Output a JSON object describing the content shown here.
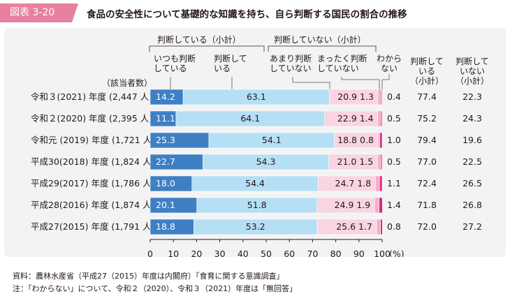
{
  "figure_label": "図表 3-20",
  "figure_title": "食品の安全性について基礎的な知識を持ち、自ら判断する国民の割合の推移",
  "headers": {
    "group_judge": "判断している（小計）",
    "group_not_judge": "判断していない（小計）",
    "always_line1": "いつも判断",
    "always_line2": "している",
    "judge_line1": "判断して",
    "judge_line2": "いる",
    "rarely_line1": "あまり判断",
    "rarely_line2": "していない",
    "never_line1": "まったく判断",
    "never_line2": "していない",
    "unknown_line1": "わから",
    "unknown_line2": "ない",
    "subtotal_judge_line1": "判断して",
    "subtotal_judge_line2": "いる",
    "subtotal_judge_line3": "（小計）",
    "subtotal_not_line1": "判断して",
    "subtotal_not_line2": "いない",
    "subtotal_not_line3": "（小計）",
    "respondents": "（該当者数）"
  },
  "footnotes": {
    "source": "資料：農林水産省（平成27（2015）年度は内閣府）「食育に関する意識調査」",
    "note": "注：「わからない」について、令和２（2020）、令和３（2021）年度は「無回答」"
  },
  "colors": {
    "always": "#3f7fc4",
    "judge": "#b5dff5",
    "rarely": "#f9d4e2",
    "never": "#f5aec8",
    "unknown": "#d6297b",
    "label_bg": "#e8809f",
    "panel_bg": "#f3f3f4"
  },
  "chart_data": {
    "type": "bar",
    "orientation": "horizontal",
    "stacked": true,
    "title": "食品の安全性について基礎的な知識を持ち、自ら判断する国民の割合の推移",
    "categories": [
      "令和３(2021) 年度 (2,447 人)",
      "令和２(2020) 年度 (2,395 人)",
      "令和元 (2019) 年度 (1,721 人)",
      "平成30(2018) 年度 (1,824 人)",
      "平成29(2017) 年度 (1,786 人)",
      "平成28(2016) 年度 (1,874 人)",
      "平成27(2015) 年度 (1,791 人)"
    ],
    "series": [
      {
        "name": "いつも判断している",
        "values": [
          14.2,
          11.1,
          25.3,
          22.7,
          18.0,
          20.1,
          18.8
        ]
      },
      {
        "name": "判断している",
        "values": [
          63.1,
          64.1,
          54.1,
          54.3,
          54.4,
          51.8,
          53.2
        ]
      },
      {
        "name": "あまり判断していない",
        "values": [
          20.9,
          22.9,
          18.8,
          21.0,
          24.7,
          24.9,
          25.6
        ]
      },
      {
        "name": "まったく判断していない",
        "values": [
          1.3,
          1.4,
          0.8,
          1.5,
          1.8,
          1.9,
          1.7
        ]
      },
      {
        "name": "わからない",
        "values": [
          0.4,
          0.5,
          1.0,
          0.5,
          1.1,
          1.4,
          0.8
        ]
      }
    ],
    "value_labels": {
      "always": [
        "14.2",
        "11.1",
        "25.3",
        "22.7",
        "18.0",
        "20.1",
        "18.8"
      ],
      "judge": [
        "63.1",
        "64.1",
        "54.1",
        "54.3",
        "54.4",
        "51.8",
        "53.2"
      ],
      "rarely": [
        "20.9",
        "22.9",
        "18.8",
        "21.0",
        "24.7",
        "24.9",
        "25.6"
      ],
      "never": [
        "1.3",
        "1.4",
        "0.8",
        "1.5",
        "1.8",
        "1.9",
        "1.7"
      ],
      "unknown": [
        "0.4",
        "0.5",
        "1.0",
        "0.5",
        "1.1",
        "1.4",
        "0.8"
      ]
    },
    "subtotals": {
      "judge": [
        "77.4",
        "75.2",
        "79.4",
        "77.0",
        "72.4",
        "71.8",
        "72.0"
      ],
      "not_judge": [
        "22.3",
        "24.3",
        "19.6",
        "22.5",
        "26.5",
        "26.8",
        "27.2"
      ]
    },
    "xlim": [
      0,
      100
    ],
    "xticks": [
      "0",
      "10",
      "20",
      "30",
      "40",
      "50",
      "60",
      "70",
      "80",
      "90",
      "100"
    ],
    "x_unit": "(%)",
    "grid": false,
    "legend": "header-top"
  }
}
